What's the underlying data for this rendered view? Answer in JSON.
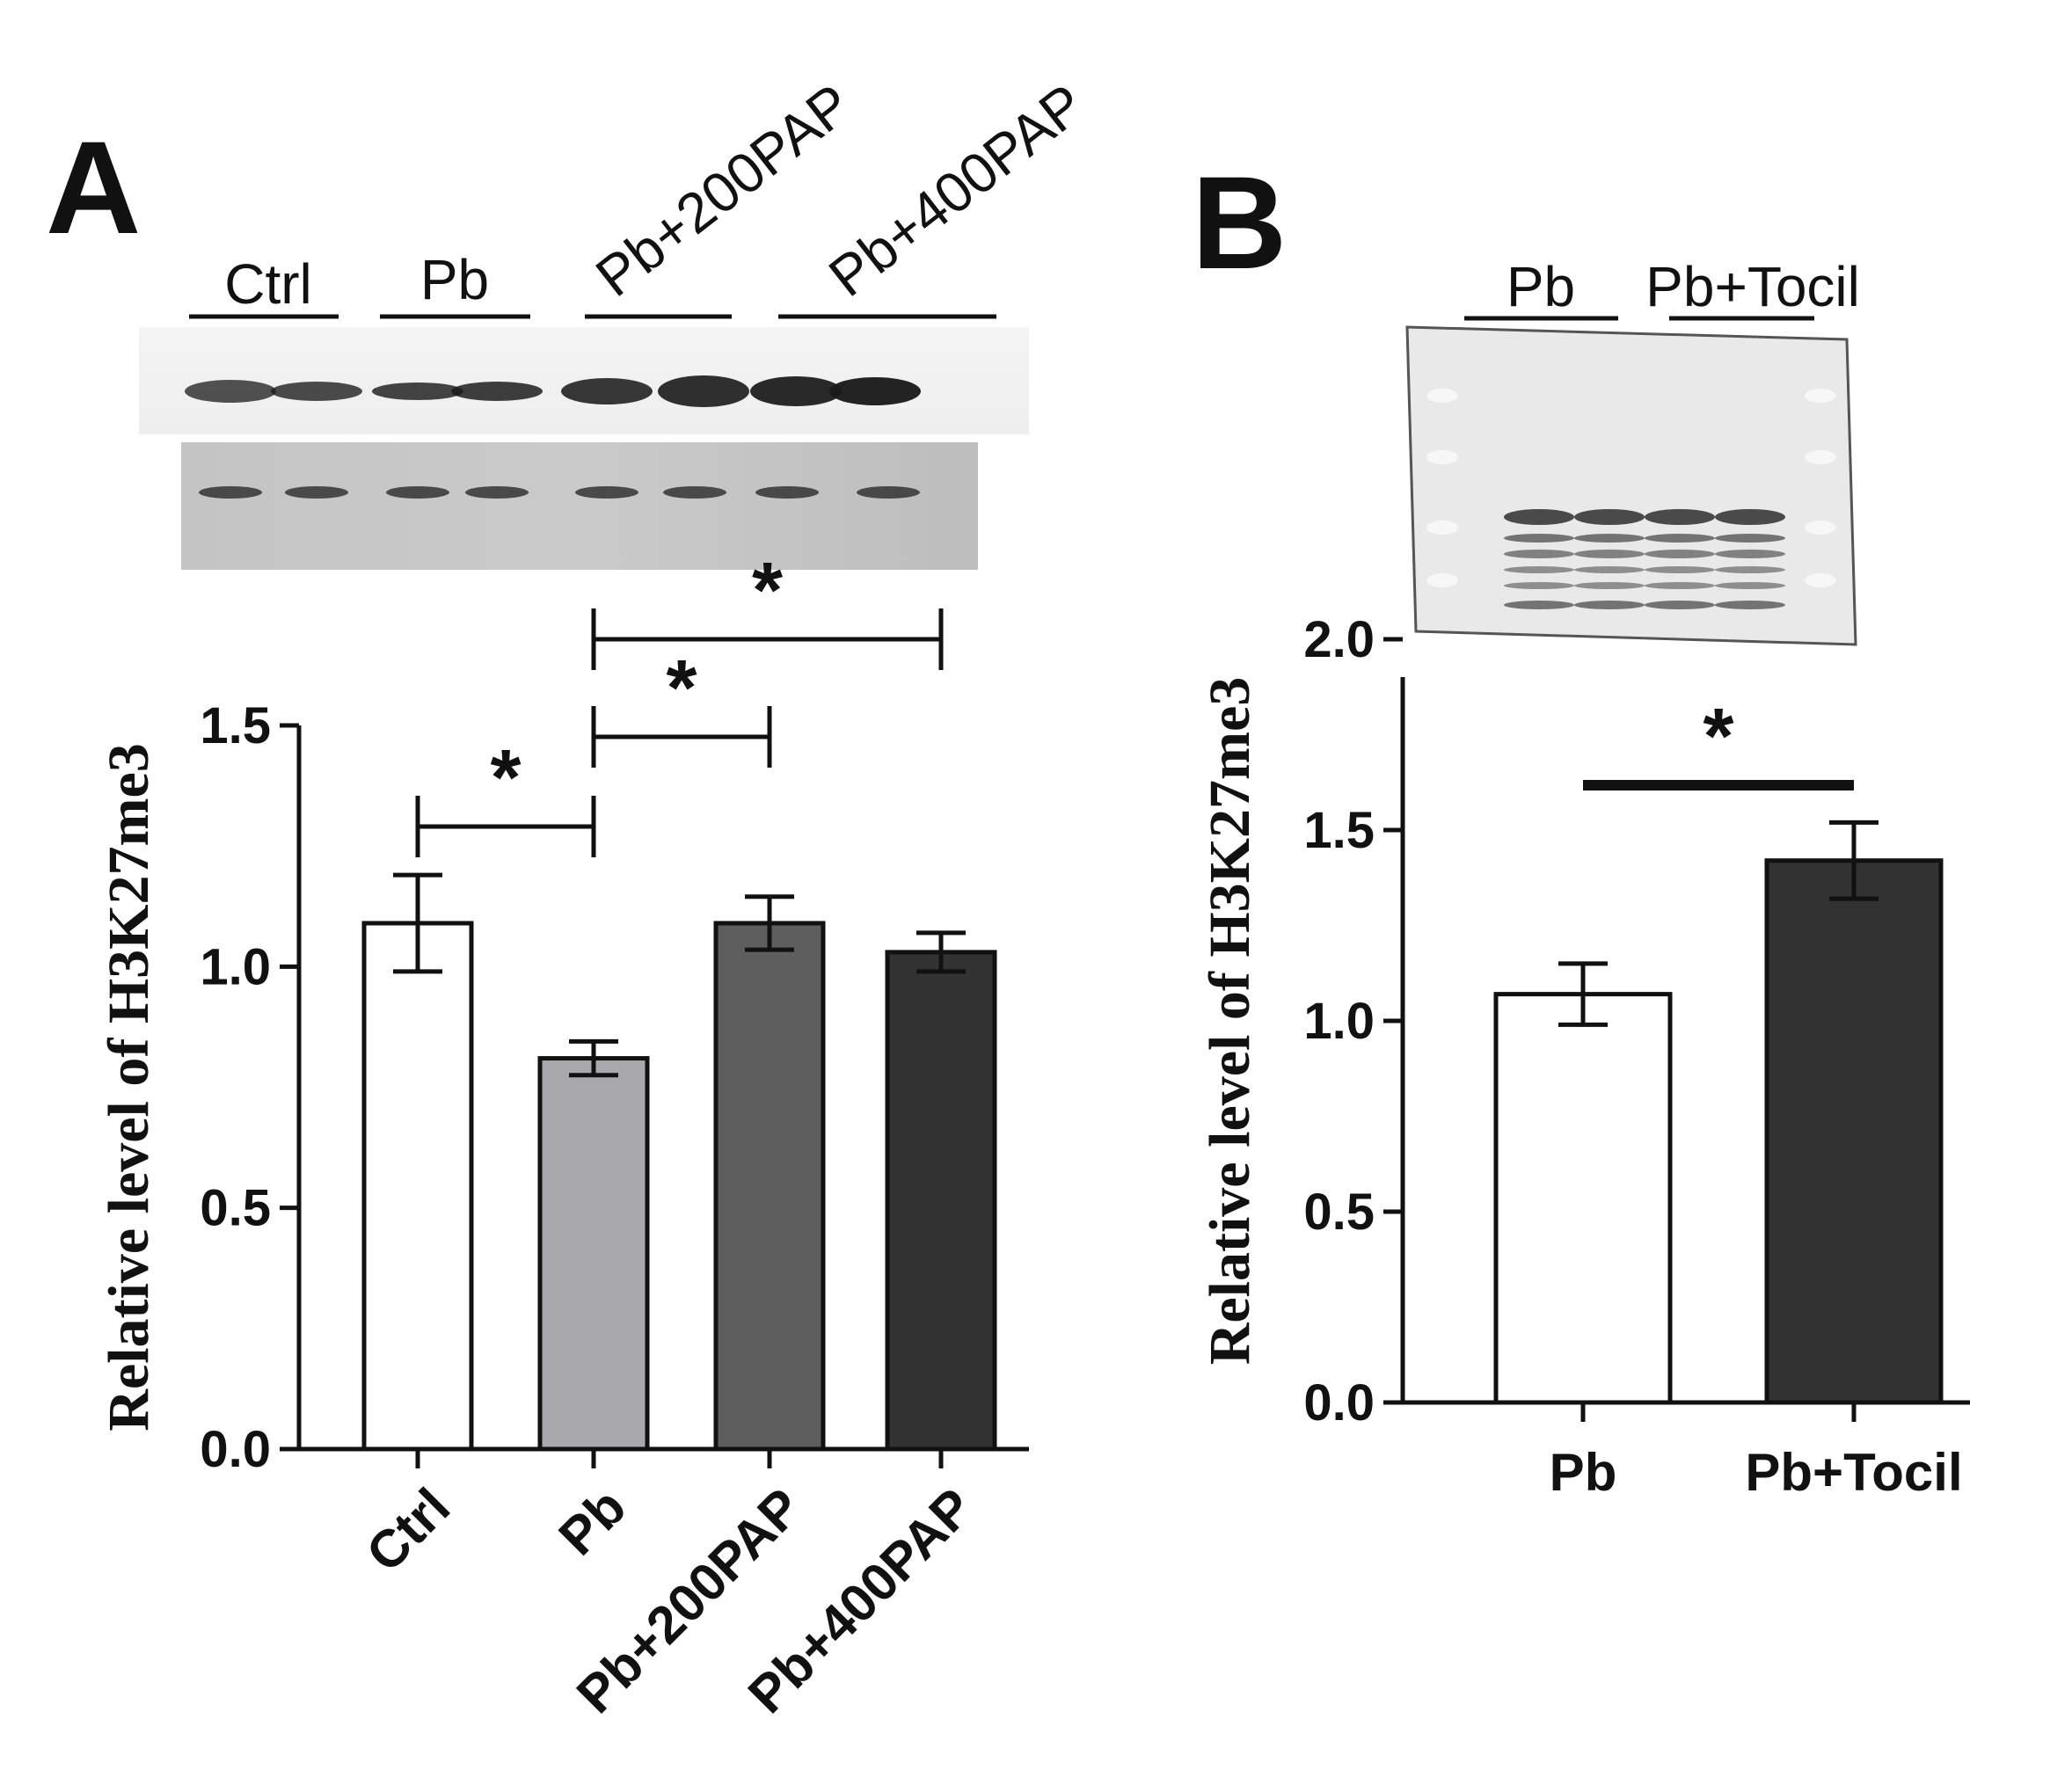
{
  "panels": {
    "a": {
      "letter": "A",
      "blot_lanes": [
        "Ctrl",
        "Pb",
        "Pb+200PAP",
        "Pb+400PAP"
      ]
    },
    "b": {
      "letter": "B",
      "blot_lanes": [
        "Pb",
        "Pb+Tocil"
      ]
    }
  },
  "colors": {
    "bar_fills_a": [
      "#ffffff",
      "#a9a9ad",
      "#5e5e5e",
      "#323232"
    ],
    "bar_fills_b": [
      "#ffffff",
      "#323232"
    ],
    "ink": "#111111"
  },
  "chart_data": [
    {
      "type": "bar",
      "title": "",
      "xlabel": "",
      "ylabel": "Relative level of H3K27me3",
      "ylim": [
        0,
        1.5
      ],
      "yticks": [
        "0.0",
        "0.5",
        "1.0",
        "1.5"
      ],
      "categories": [
        "Ctrl",
        "Pb",
        "Pb+200PAP",
        "Pb+400PAP"
      ],
      "values": [
        1.09,
        0.81,
        1.09,
        1.03
      ],
      "errors": [
        0.1,
        0.035,
        0.055,
        0.04
      ],
      "significance": [
        {
          "from": 0,
          "to": 1,
          "label": "*"
        },
        {
          "from": 1,
          "to": 2,
          "label": "*"
        },
        {
          "from": 1,
          "to": 3,
          "label": "*"
        }
      ],
      "grid": false
    },
    {
      "type": "bar",
      "title": "",
      "xlabel": "",
      "ylabel": "Relative level of H3K27me3",
      "ylim": [
        0,
        2.0
      ],
      "yticks": [
        "0.0",
        "0.5",
        "1.0",
        "1.5",
        "2.0"
      ],
      "categories": [
        "Pb",
        "Pb+Tocil"
      ],
      "values": [
        1.07,
        1.42
      ],
      "errors": [
        0.08,
        0.1
      ],
      "significance": [
        {
          "from": 0,
          "to": 1,
          "label": "*"
        }
      ],
      "grid": false
    }
  ]
}
